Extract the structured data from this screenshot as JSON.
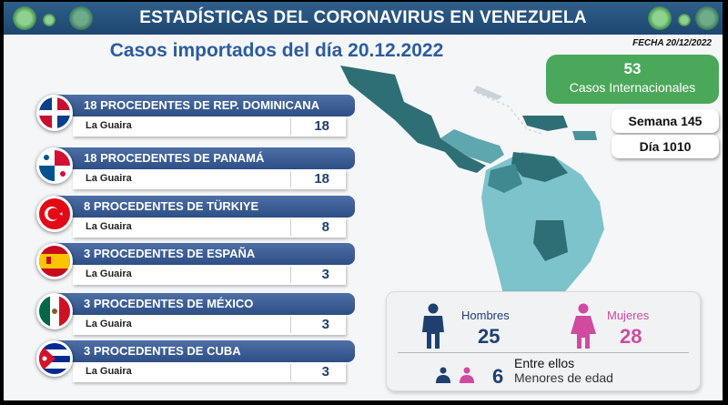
{
  "header": {
    "title": "ESTADÍSTICAS DEL CORONAVIRUS EN VENEZUELA"
  },
  "subtitle": "Casos importados del día 20.12.2022",
  "fecha": "FECHA 20/12/2022",
  "international": {
    "count": "53",
    "label": "Casos Internacionales"
  },
  "semana": "Semana 145",
  "dia": "Día 1010",
  "origins": [
    {
      "title": "18 PROCEDENTES DE REP. DOMINICANA",
      "city": "La Guaira",
      "count": "18",
      "flag": "dominican-republic-flag-icon"
    },
    {
      "title": "18 PROCEDENTES DE PANAMÁ",
      "city": "La Guaira",
      "count": "18",
      "flag": "panama-flag-icon"
    },
    {
      "title": "8 PROCEDENTES DE TÜRKIYE",
      "city": "La Guaira",
      "count": "8",
      "flag": "turkiye-flag-icon"
    },
    {
      "title": "3 PROCEDENTES DE ESPAÑA",
      "city": "La Guaira",
      "count": "3",
      "flag": "spain-flag-icon"
    },
    {
      "title": "3 PROCEDENTES DE MÉXICO",
      "city": "La Guaira",
      "count": "3",
      "flag": "mexico-flag-icon"
    },
    {
      "title": "3 PROCEDENTES DE CUBA",
      "city": "La Guaira",
      "count": "3",
      "flag": "cuba-flag-icon"
    }
  ],
  "gender": {
    "men_label": "Hombres",
    "men_count": "25",
    "women_label": "Mujeres",
    "women_count": "28",
    "entre": "Entre ellos",
    "minors_count": "6",
    "minors_label": "Menores de edad"
  },
  "colors": {
    "header": "#1e4670",
    "banner": "#3a5c92",
    "green": "#4ba85b",
    "men": "#1f3f6f",
    "women": "#d04aa0",
    "map_dark": "#2e6f75",
    "map_light": "#7dc3cc"
  }
}
